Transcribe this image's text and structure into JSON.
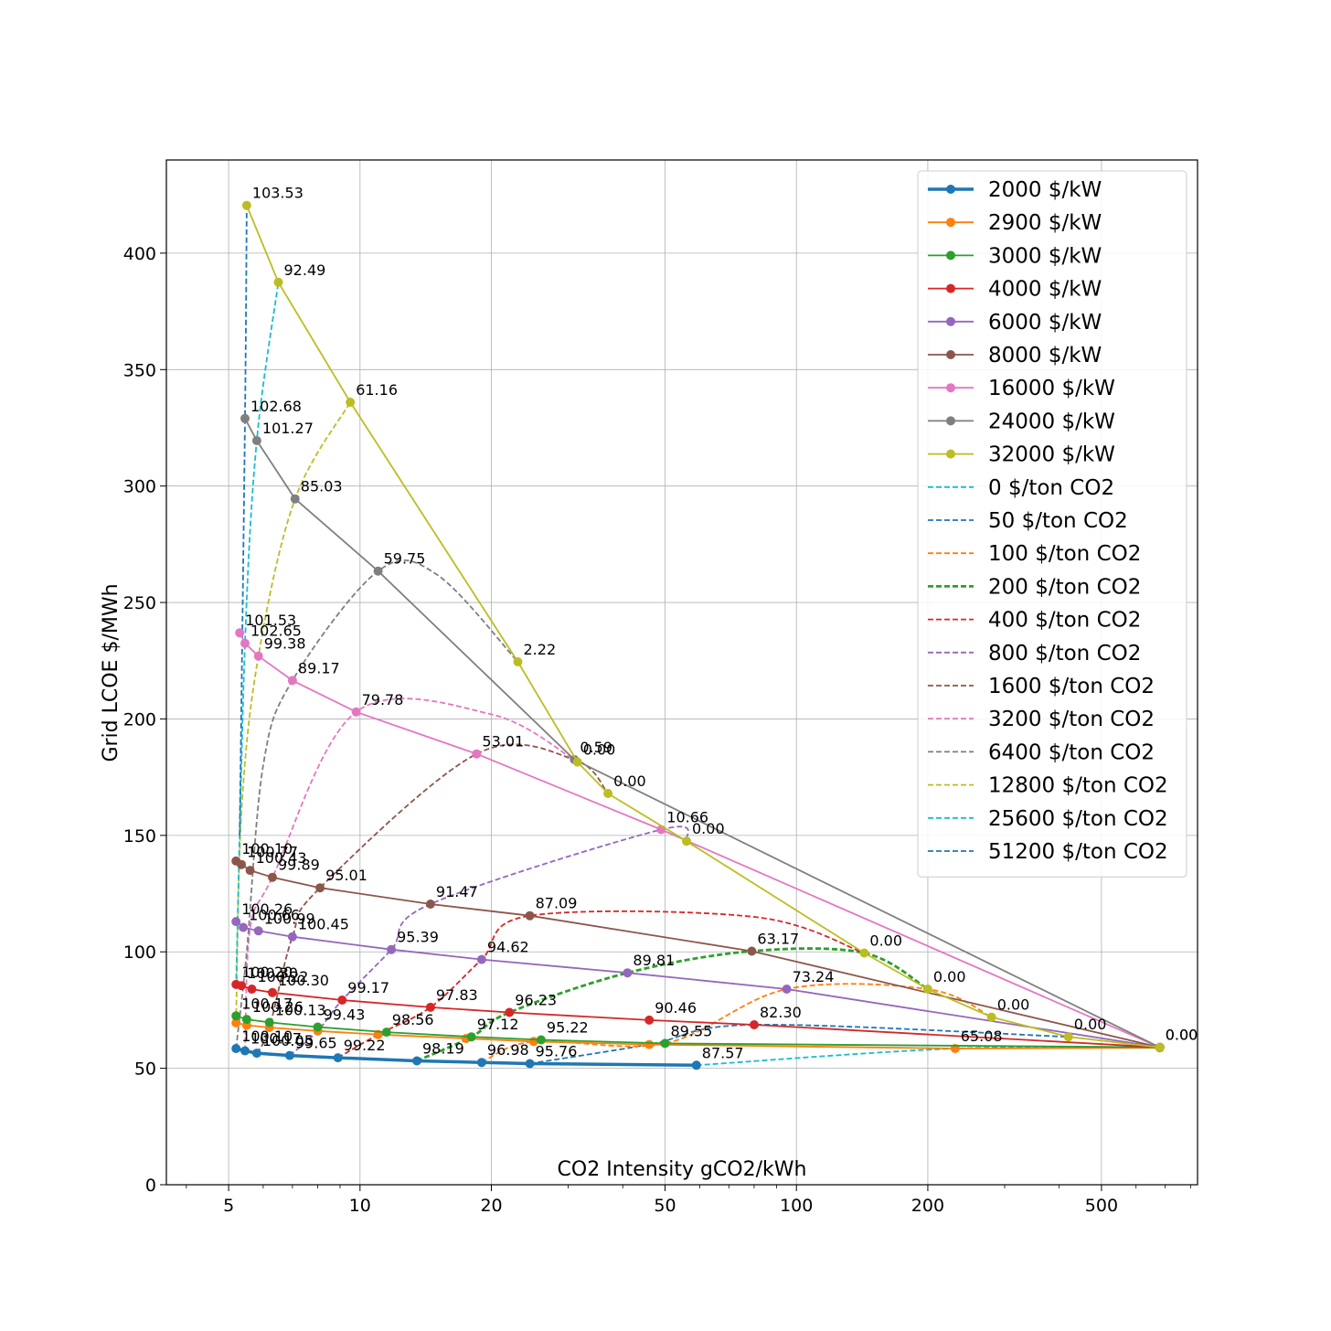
{
  "chart_data": {
    "type": "line",
    "title": "",
    "xlabel": "CO2 Intensity gCO2/kWh",
    "ylabel": "Grid LCOE $/MWh",
    "xscale": "log",
    "xlim": [
      3.6,
      830
    ],
    "ylim": [
      0,
      440
    ],
    "xticks": [
      5,
      10,
      20,
      50,
      100,
      200,
      500
    ],
    "yticks": [
      0,
      50,
      100,
      150,
      200,
      250,
      300,
      350,
      400
    ],
    "grid": true,
    "legend_placement": "top-right",
    "series": [
      {
        "name": "2000 $/kW",
        "color": "#1f77b4",
        "style": "solid",
        "width": 3.5,
        "marker": true,
        "points": [
          [
            5.2,
            58.5,
            "100.10"
          ],
          [
            5.45,
            57.5,
            "100.17"
          ],
          [
            5.8,
            56.5,
            "100.05"
          ],
          [
            6.9,
            55.5,
            "99.65"
          ],
          [
            8.9,
            54.5,
            "99.22"
          ],
          [
            13.5,
            53.2,
            "98.19"
          ],
          [
            19,
            52.5,
            "96.98"
          ],
          [
            24.5,
            52,
            "95.76"
          ],
          [
            59,
            51.3,
            "87.57"
          ]
        ]
      },
      {
        "name": "2900 $/kW",
        "color": "#ff7f0e",
        "style": "solid",
        "width": 1.8,
        "marker": true,
        "points": [
          [
            5.2,
            69.5,
            ""
          ],
          [
            5.5,
            68.5,
            ""
          ],
          [
            6.2,
            67.5,
            ""
          ],
          [
            8,
            66,
            ""
          ],
          [
            11,
            64.5,
            ""
          ],
          [
            17.5,
            62.8,
            ""
          ],
          [
            25,
            61.5,
            ""
          ],
          [
            46,
            60.2,
            ""
          ],
          [
            231,
            58.5,
            "65.08"
          ],
          [
            680,
            58.8,
            ""
          ]
        ]
      },
      {
        "name": "3000 $/kW",
        "color": "#2ca02c",
        "style": "solid",
        "width": 1.8,
        "marker": true,
        "points": [
          [
            5.2,
            72.5,
            "100.17"
          ],
          [
            5.5,
            71,
            "100.26"
          ],
          [
            6.2,
            69.7,
            "100.13"
          ],
          [
            8,
            67.7,
            "99.43"
          ],
          [
            11.5,
            65.5,
            "98.56"
          ],
          [
            18,
            63.5,
            "97.12"
          ],
          [
            26,
            62.2,
            "95.22"
          ],
          [
            50,
            60.7,
            "89.55"
          ],
          [
            680,
            59,
            "0.00"
          ]
        ]
      },
      {
        "name": "4000 $/kW",
        "color": "#d62728",
        "style": "solid",
        "width": 1.8,
        "marker": true,
        "points": [
          [
            5.2,
            86,
            "100.20"
          ],
          [
            5.35,
            85.5,
            "100.30"
          ],
          [
            5.65,
            84,
            "100.22"
          ],
          [
            6.3,
            82.5,
            "100.30"
          ],
          [
            9.1,
            79.3,
            "99.17"
          ],
          [
            14.5,
            76.2,
            "97.83"
          ],
          [
            22,
            74,
            "96.23"
          ],
          [
            46,
            70.7,
            "90.46"
          ],
          [
            80,
            68.7,
            "82.30"
          ],
          [
            680,
            59,
            ""
          ]
        ]
      },
      {
        "name": "6000 $/kW",
        "color": "#9467bd",
        "style": "solid",
        "width": 1.8,
        "marker": true,
        "points": [
          [
            5.2,
            113,
            "100.26"
          ],
          [
            5.4,
            110.5,
            "100.66"
          ],
          [
            5.85,
            109,
            "100.99"
          ],
          [
            7,
            106.5,
            "100.45"
          ],
          [
            11.8,
            101,
            "95.39"
          ],
          [
            19,
            96.7,
            "94.62"
          ],
          [
            41,
            91,
            "89.81"
          ],
          [
            95,
            84,
            "73.24"
          ],
          [
            680,
            59,
            ""
          ]
        ]
      },
      {
        "name": "8000 $/kW",
        "color": "#8c564b",
        "style": "solid",
        "width": 1.8,
        "marker": true,
        "points": [
          [
            5.2,
            139,
            "100.10"
          ],
          [
            5.35,
            137.5,
            "100.77"
          ],
          [
            5.6,
            135,
            "100.43"
          ],
          [
            6.3,
            132,
            "99.89"
          ],
          [
            8.1,
            127.5,
            "95.01"
          ],
          [
            14.5,
            120.5,
            "91.47"
          ],
          [
            24.5,
            115.5,
            "87.09"
          ],
          [
            79,
            100.3,
            "63.17"
          ],
          [
            680,
            59,
            ""
          ]
        ]
      },
      {
        "name": "16000 $/kW",
        "color": "#e377c2",
        "style": "solid",
        "width": 1.8,
        "marker": true,
        "points": [
          [
            5.3,
            237,
            "101.53"
          ],
          [
            5.45,
            232.5,
            "102.65"
          ],
          [
            5.85,
            227,
            "99.38"
          ],
          [
            7,
            216.5,
            "89.17"
          ],
          [
            9.8,
            203,
            "79.78"
          ],
          [
            18.5,
            185,
            "53.01"
          ],
          [
            49,
            152.5,
            "10.66"
          ],
          [
            680,
            59,
            ""
          ]
        ]
      },
      {
        "name": "24000 $/kW",
        "color": "#7f7f7f",
        "style": "solid",
        "width": 1.8,
        "marker": true,
        "points": [
          [
            5.45,
            329,
            "102.68"
          ],
          [
            5.8,
            319.5,
            "101.27"
          ],
          [
            7.1,
            294.5,
            "85.03"
          ],
          [
            11,
            263.5,
            "59.75"
          ],
          [
            31,
            182.5,
            "0.59"
          ],
          [
            680,
            59,
            ""
          ]
        ]
      },
      {
        "name": "32000 $/kW",
        "color": "#bcbd22",
        "style": "solid",
        "width": 1.8,
        "marker": true,
        "points": [
          [
            5.5,
            420.5,
            "103.53"
          ],
          [
            6.5,
            387.5,
            "92.49"
          ],
          [
            9.5,
            336,
            "61.16"
          ],
          [
            23,
            224.5,
            "2.22"
          ],
          [
            31.5,
            181.5,
            "0.00"
          ],
          [
            37,
            168,
            "0.00"
          ],
          [
            56,
            147.5,
            "0.00"
          ],
          [
            143,
            99.5,
            "0.00"
          ],
          [
            200,
            84,
            "0.00"
          ],
          [
            280,
            72,
            "0.00"
          ],
          [
            420,
            63.5,
            "0.00"
          ],
          [
            680,
            59,
            "0.00"
          ]
        ]
      },
      {
        "name": "0 $/ton CO2",
        "color": "#17becf",
        "style": "dashed",
        "width": 1.8,
        "marker": false,
        "points": [
          [
            59,
            51.3
          ],
          [
            231,
            58.5
          ],
          [
            680,
            59
          ]
        ]
      },
      {
        "name": "50 $/ton CO2",
        "color": "#1f77b4",
        "style": "dashed",
        "width": 1.8,
        "marker": false,
        "points": [
          [
            24.5,
            52
          ],
          [
            46,
            60.2
          ],
          [
            80,
            68.7
          ],
          [
            420,
            63.5
          ]
        ]
      },
      {
        "name": "100 $/ton CO2",
        "color": "#ff7f0e",
        "style": "dashed",
        "width": 1.8,
        "marker": false,
        "points": [
          [
            19,
            52.5
          ],
          [
            25,
            61.5
          ],
          [
            50,
            60.7
          ],
          [
            95,
            84
          ],
          [
            200,
            84
          ],
          [
            280,
            72
          ]
        ]
      },
      {
        "name": "200 $/ton CO2",
        "color": "#2ca02c",
        "style": "dashed",
        "width": 2.8,
        "marker": false,
        "points": [
          [
            13.5,
            53.2
          ],
          [
            18,
            63.5
          ],
          [
            22,
            74
          ],
          [
            41,
            91
          ],
          [
            79,
            100.3
          ],
          [
            143,
            99.5
          ],
          [
            200,
            84
          ]
        ]
      },
      {
        "name": "400 $/ton CO2",
        "color": "#d62728",
        "style": "dashed",
        "width": 1.8,
        "marker": false,
        "points": [
          [
            8.9,
            54.5
          ],
          [
            11,
            64.5
          ],
          [
            14.5,
            76.2
          ],
          [
            19,
            96.7
          ],
          [
            24.5,
            115.5
          ],
          [
            80,
            115
          ],
          [
            143,
            99.5
          ]
        ]
      },
      {
        "name": "800 $/ton CO2",
        "color": "#9467bd",
        "style": "dashed",
        "width": 1.8,
        "marker": false,
        "points": [
          [
            6.9,
            55.5
          ],
          [
            8,
            66
          ],
          [
            9.1,
            79.3
          ],
          [
            11.8,
            101
          ],
          [
            14.5,
            120.5
          ],
          [
            49,
            152.5
          ],
          [
            56,
            147.5
          ]
        ]
      },
      {
        "name": "1600 $/ton CO2",
        "color": "#8c564b",
        "style": "dashed",
        "width": 1.8,
        "marker": false,
        "points": [
          [
            5.8,
            56.5
          ],
          [
            6.2,
            67.5
          ],
          [
            7,
            106.5
          ],
          [
            8.1,
            127.5
          ],
          [
            18.5,
            185
          ],
          [
            31,
            182.5
          ],
          [
            37,
            168
          ]
        ]
      },
      {
        "name": "3200 $/ton CO2",
        "color": "#e377c2",
        "style": "dashed",
        "width": 1.8,
        "marker": false,
        "points": [
          [
            5.45,
            57.5
          ],
          [
            5.6,
            110
          ],
          [
            6.3,
            132
          ],
          [
            9.8,
            203
          ],
          [
            20,
            202
          ],
          [
            31.5,
            181.5
          ]
        ]
      },
      {
        "name": "6400 $/ton CO2",
        "color": "#7f7f7f",
        "style": "dashed",
        "width": 1.8,
        "marker": false,
        "points": [
          [
            5.2,
            58.5
          ],
          [
            5.5,
            100
          ],
          [
            6,
            180
          ],
          [
            7,
            216.5
          ],
          [
            11,
            263.5
          ],
          [
            15,
            262
          ],
          [
            23,
            224.5
          ]
        ]
      },
      {
        "name": "12800 $/ton CO2",
        "color": "#bcbd22",
        "style": "dashed",
        "width": 1.8,
        "marker": false,
        "points": [
          [
            5.2,
            70
          ],
          [
            5.35,
            160
          ],
          [
            5.85,
            227
          ],
          [
            7.1,
            294.5
          ],
          [
            9.5,
            336
          ]
        ]
      },
      {
        "name": "25600 $/ton CO2",
        "color": "#17becf",
        "style": "dashed",
        "width": 1.8,
        "marker": false,
        "points": [
          [
            5.2,
            85
          ],
          [
            5.45,
            232.5
          ],
          [
            5.8,
            319.5
          ],
          [
            6.5,
            387.5
          ]
        ]
      },
      {
        "name": "51200 $/ton CO2",
        "color": "#1f77b4",
        "style": "dashed",
        "width": 1.8,
        "marker": false,
        "points": [
          [
            5.3,
            150
          ],
          [
            5.45,
            329
          ],
          [
            5.5,
            420.5
          ]
        ]
      }
    ]
  }
}
